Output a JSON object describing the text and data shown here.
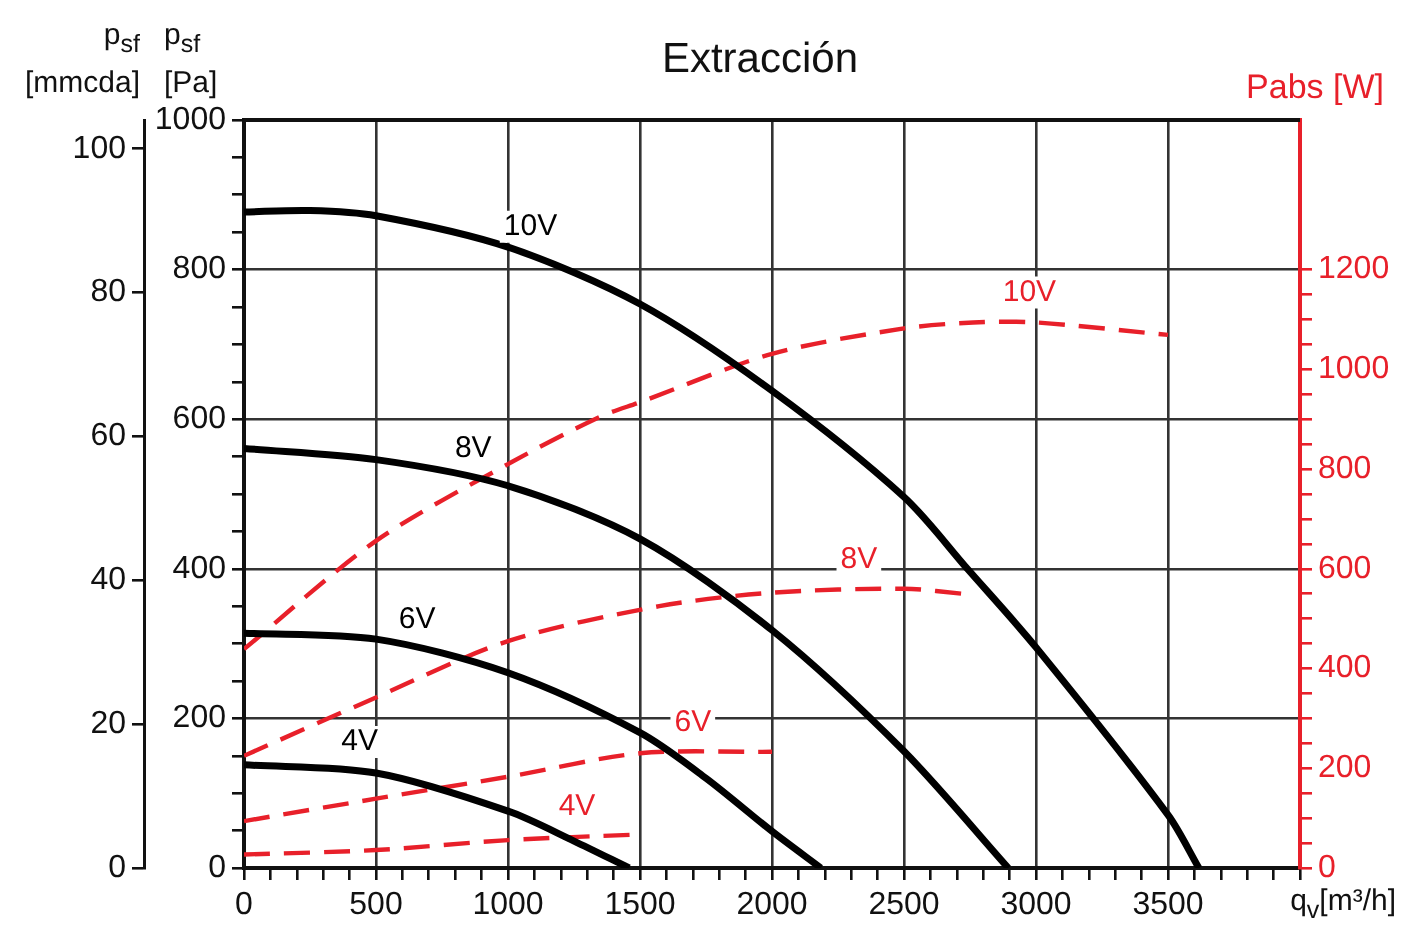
{
  "chart_data": {
    "type": "line",
    "title": "Extracción",
    "xlabel": "q$_{v}$[m³/h]",
    "ylabel": "p$_{sf}$ [Pa]",
    "y2label": "Pabs [W]",
    "y3label": "p$_{sf}$ [mmcda]",
    "xlim": [
      0,
      4000
    ],
    "xticks": [
      0,
      {
        "value": 100,
        "label": null
      },
      {
        "value": 200,
        "label": null
      },
      {
        "value": 300,
        "label": null
      },
      {
        "value": 400,
        "label": null
      },
      500,
      {
        "value": 600,
        "label": null
      },
      {
        "value": 700,
        "label": null
      },
      {
        "value": 800,
        "label": null
      },
      {
        "value": 900,
        "label": null
      },
      1000,
      {
        "value": 1100,
        "label": null
      },
      {
        "value": 1200,
        "label": null
      },
      {
        "value": 1300,
        "label": null
      },
      {
        "value": 1400,
        "label": null
      },
      1500,
      {
        "value": 1600,
        "label": null
      },
      {
        "value": 1700,
        "label": null
      },
      {
        "value": 1800,
        "label": null
      },
      {
        "value": 1900,
        "label": null
      },
      2000,
      {
        "value": 2100,
        "label": null
      },
      {
        "value": 2200,
        "label": null
      },
      {
        "value": 2300,
        "label": null
      },
      {
        "value": 2400,
        "label": null
      },
      2500,
      {
        "value": 2600,
        "label": null
      },
      {
        "value": 2700,
        "label": null
      },
      {
        "value": 2800,
        "label": null
      },
      {
        "value": 2900,
        "label": null
      },
      3000,
      {
        "value": 3100,
        "label": null
      },
      {
        "value": 3200,
        "label": null
      },
      {
        "value": 3300,
        "label": null
      },
      {
        "value": 3400,
        "label": null
      },
      3500,
      {
        "value": 3600,
        "label": null
      },
      {
        "value": 3700,
        "label": null
      },
      {
        "value": 3800,
        "label": null
      },
      {
        "value": 3900,
        "label": null
      },
      {
        "value": 4000,
        "label": null
      }
    ],
    "ylim": [
      0,
      1000
    ],
    "yticks": [
      0,
      {
        "value": 50,
        "label": null
      },
      {
        "value": 100,
        "label": null
      },
      {
        "value": 150,
        "label": null
      },
      200,
      {
        "value": 250,
        "label": null
      },
      {
        "value": 300,
        "label": null
      },
      {
        "value": 350,
        "label": null
      },
      400,
      {
        "value": 450,
        "label": null
      },
      {
        "value": 500,
        "label": null
      },
      {
        "value": 550,
        "label": null
      },
      600,
      {
        "value": 650,
        "label": null
      },
      {
        "value": 700,
        "label": null
      },
      {
        "value": 750,
        "label": null
      },
      800,
      {
        "value": 850,
        "label": null
      },
      {
        "value": 900,
        "label": null
      },
      {
        "value": 950,
        "label": null
      },
      1000
    ],
    "y2lim": [
      0,
      1500
    ],
    "y2ticks": [
      0,
      {
        "value": 50,
        "label": null
      },
      {
        "value": 100,
        "label": null
      },
      {
        "value": 150,
        "label": null
      },
      200,
      {
        "value": 250,
        "label": null
      },
      {
        "value": 300,
        "label": null
      },
      {
        "value": 350,
        "label": null
      },
      400,
      {
        "value": 450,
        "label": null
      },
      {
        "value": 500,
        "label": null
      },
      {
        "value": 550,
        "label": null
      },
      600,
      {
        "value": 650,
        "label": null
      },
      {
        "value": 700,
        "label": null
      },
      {
        "value": 750,
        "label": null
      },
      800,
      {
        "value": 850,
        "label": null
      },
      {
        "value": 900,
        "label": null
      },
      {
        "value": 950,
        "label": null
      },
      1000,
      {
        "value": 1050,
        "label": null
      },
      {
        "value": 1100,
        "label": null
      },
      {
        "value": 1150,
        "label": null
      },
      1200
    ],
    "y3lim": [
      0,
      104
    ],
    "y3ticks": [
      0,
      20,
      40,
      60,
      80,
      100
    ],
    "grid": true,
    "marker": "none",
    "series": [
      {
        "name": "10V",
        "color": "#000000",
        "axis": "y",
        "line_style": "solid",
        "x": [
          0,
          250,
          500,
          1000,
          1500,
          2000,
          2500,
          2740,
          3000,
          3500,
          3617
        ],
        "values": [
          877,
          879,
          872,
          830,
          754,
          638,
          496,
          400,
          295,
          71,
          0
        ]
      },
      {
        "name": "8V",
        "color": "#000000",
        "axis": "y",
        "line_style": "solid",
        "x": [
          0,
          500,
          1000,
          1500,
          2000,
          2500,
          2895
        ],
        "values": [
          561,
          546,
          511,
          440,
          318,
          156,
          0
        ]
      },
      {
        "name": "6V",
        "color": "#000000",
        "axis": "y",
        "line_style": "solid",
        "x": [
          0,
          500,
          1000,
          1500,
          1750,
          2000,
          2185
        ],
        "values": [
          314,
          306,
          261,
          181,
          120,
          49,
          0
        ]
      },
      {
        "name": "4V",
        "color": "#000000",
        "axis": "y",
        "line_style": "solid",
        "x": [
          0,
          500,
          1000,
          1250,
          1459
        ],
        "values": [
          138,
          127,
          76,
          36,
          0
        ]
      },
      {
        "name": "10V",
        "color": "#e8202a",
        "axis": "y2",
        "line_style": "dashed",
        "x": [
          0,
          500,
          1000,
          1345,
          1500,
          2000,
          2500,
          2762,
          3000,
          3500
        ],
        "values": [
          439,
          656,
          810,
          904,
          934,
          1031,
          1082,
          1094,
          1094,
          1069
        ]
      },
      {
        "name": "8V",
        "color": "#e8202a",
        "axis": "y2",
        "line_style": "dashed",
        "x": [
          0,
          500,
          1000,
          1573,
          2000,
          2500,
          2740
        ],
        "values": [
          225,
          342,
          455,
          525,
          552,
          560,
          549
        ]
      },
      {
        "name": "6V",
        "color": "#e8202a",
        "axis": "y2",
        "line_style": "dashed",
        "x": [
          0,
          500,
          1000,
          1500,
          2000
        ],
        "values": [
          94,
          139,
          183,
          230,
          233
        ]
      },
      {
        "name": "4V",
        "color": "#e8202a",
        "axis": "y2",
        "line_style": "dashed",
        "x": [
          0,
          500,
          1000,
          1484
        ],
        "values": [
          27,
          36,
          56,
          67
        ]
      }
    ]
  }
}
